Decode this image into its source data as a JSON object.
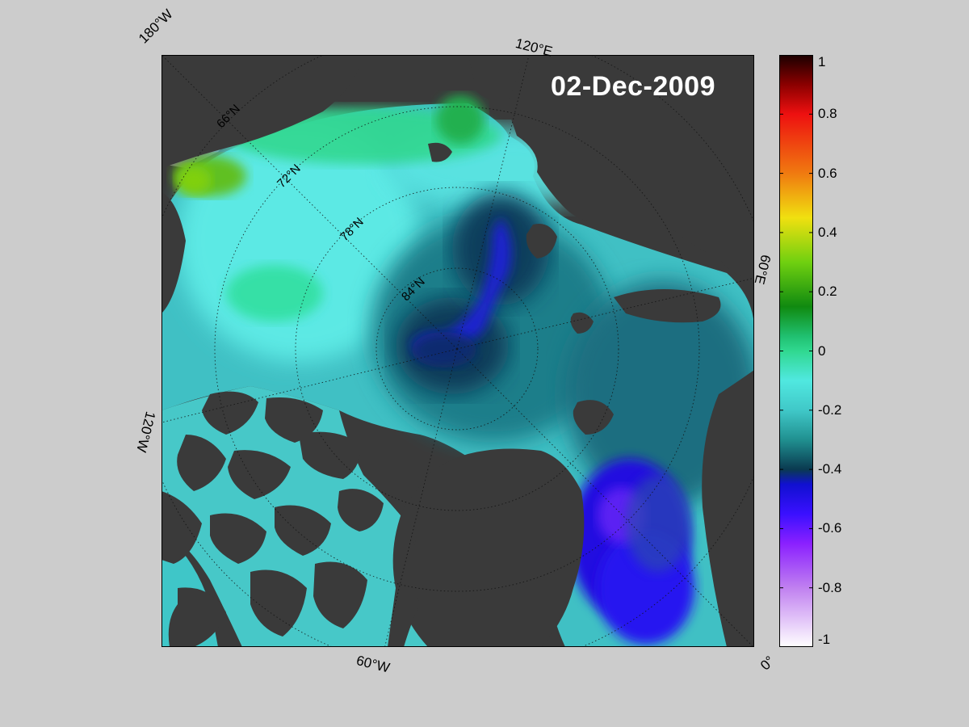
{
  "map": {
    "date": "02-Dec-2009",
    "projection": "north-polar-stereographic",
    "longitude_labels": [
      "180°W",
      "120°E",
      "60°E",
      "0°",
      "60°W",
      "120°W"
    ],
    "latitude_labels": [
      "66°N",
      "72°N",
      "78°N",
      "84°N"
    ],
    "colors": {
      "land": "#3a3a3a",
      "outside": "#7c7c7c",
      "background": "#cccccc",
      "date_text": "#ffffff"
    }
  },
  "colorbar": {
    "min": -1,
    "max": 1,
    "tick_labels": [
      "1",
      "0.8",
      "0.6",
      "0.4",
      "0.2",
      "0",
      "-0.2",
      "-0.4",
      "-0.6",
      "-0.8",
      "-1"
    ],
    "ticks": [
      1,
      0.8,
      0.6,
      0.4,
      0.2,
      0,
      -0.2,
      -0.4,
      -0.6,
      -0.8,
      -1
    ],
    "stops": [
      {
        "value": 1.0,
        "color": "#1a0000"
      },
      {
        "value": 0.9,
        "color": "#8b0000"
      },
      {
        "value": 0.8,
        "color": "#ee1010"
      },
      {
        "value": 0.6,
        "color": "#f07a10"
      },
      {
        "value": 0.45,
        "color": "#f0e010"
      },
      {
        "value": 0.3,
        "color": "#70d010"
      },
      {
        "value": 0.15,
        "color": "#108a10"
      },
      {
        "value": 0.05,
        "color": "#20c070"
      },
      {
        "value": 0.0,
        "color": "#30d890"
      },
      {
        "value": -0.1,
        "color": "#50e8e0"
      },
      {
        "value": -0.2,
        "color": "#40c8c8"
      },
      {
        "value": -0.3,
        "color": "#209090"
      },
      {
        "value": -0.4,
        "color": "#0a3a50"
      },
      {
        "value": -0.45,
        "color": "#1010d0"
      },
      {
        "value": -0.55,
        "color": "#3a10ff"
      },
      {
        "value": -0.65,
        "color": "#8a20ff"
      },
      {
        "value": -0.8,
        "color": "#c080f0"
      },
      {
        "value": -1.0,
        "color": "#ffffff"
      }
    ]
  }
}
